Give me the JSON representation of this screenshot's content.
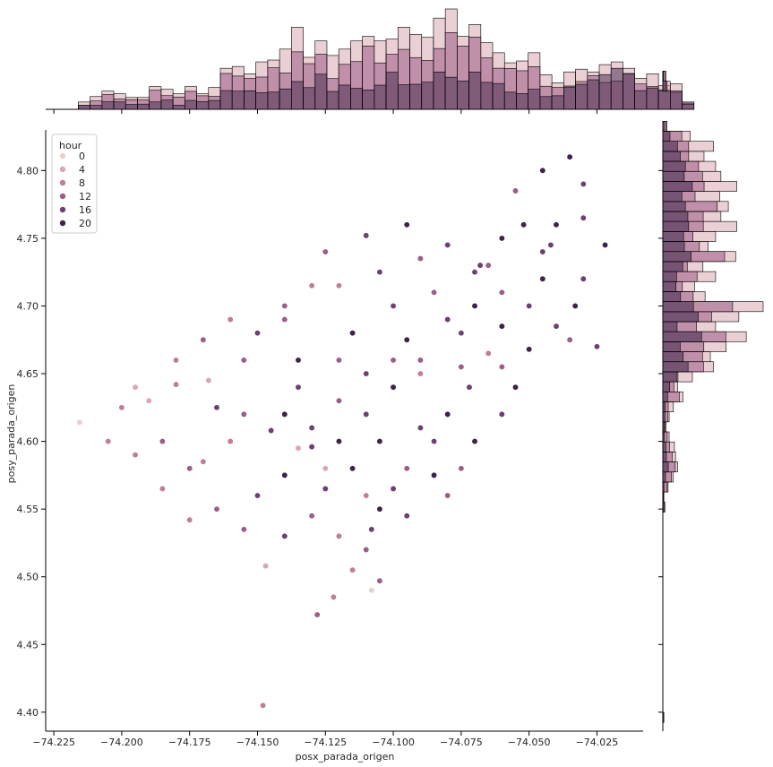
{
  "chart_data": {
    "type": "scatter",
    "subtype": "jointplot",
    "title": "",
    "xlabel": "posx_parada_origen",
    "ylabel": "posy_parada_origen",
    "xlim": [
      -74.228,
      -74.008
    ],
    "ylim": [
      4.386,
      4.83
    ],
    "xticks": [
      -74.225,
      -74.2,
      -74.175,
      -74.15,
      -74.125,
      -74.1,
      -74.075,
      -74.05,
      -74.025
    ],
    "xtick_labels": [
      "−74.225",
      "−74.200",
      "−74.175",
      "−74.150",
      "−74.125",
      "−74.100",
      "−74.075",
      "−74.050",
      "−74.025"
    ],
    "yticks": [
      4.4,
      4.45,
      4.5,
      4.55,
      4.6,
      4.65,
      4.7,
      4.75,
      4.8
    ],
    "ytick_labels": [
      "4.40",
      "4.45",
      "4.50",
      "4.55",
      "4.60",
      "4.65",
      "4.70",
      "4.75",
      "4.80"
    ],
    "grid": false,
    "legend": {
      "title": "hour",
      "placement": "upper-left",
      "entries": [
        {
          "label": "0",
          "color": "#ebcfcf"
        },
        {
          "label": "4",
          "color": "#d9a7b0"
        },
        {
          "label": "8",
          "color": "#bf7e97"
        },
        {
          "label": "12",
          "color": "#9c5d87"
        },
        {
          "label": "16",
          "color": "#6e3f72"
        },
        {
          "label": "20",
          "color": "#3d2347"
        }
      ]
    },
    "hue_colors": [
      "#ebcfcf",
      "#d9a7b0",
      "#bf7e97",
      "#9c5d87",
      "#6e3f72",
      "#3d2347"
    ],
    "stops": [
      [
        -74.2155,
        4.614,
        0
      ],
      [
        -74.205,
        4.6,
        2
      ],
      [
        -74.19,
        4.63,
        1
      ],
      [
        -74.18,
        4.642,
        2
      ],
      [
        -74.168,
        4.645,
        1
      ],
      [
        -74.17,
        4.585,
        2
      ],
      [
        -74.155,
        4.62,
        3
      ],
      [
        -74.145,
        4.608,
        4
      ],
      [
        -74.13,
        4.596,
        4
      ],
      [
        -74.155,
        4.66,
        3
      ],
      [
        -74.15,
        4.68,
        4
      ],
      [
        -74.14,
        4.69,
        3
      ],
      [
        -74.13,
        4.715,
        2
      ],
      [
        -74.125,
        4.74,
        3
      ],
      [
        -74.11,
        4.752,
        4
      ],
      [
        -74.095,
        4.76,
        5
      ],
      [
        -74.08,
        4.745,
        4
      ],
      [
        -74.065,
        4.73,
        3
      ],
      [
        -74.06,
        4.75,
        5
      ],
      [
        -74.045,
        4.74,
        4
      ],
      [
        -74.04,
        4.76,
        5
      ],
      [
        -74.03,
        4.765,
        4
      ],
      [
        -74.022,
        4.745,
        5
      ],
      [
        -74.03,
        4.72,
        4
      ],
      [
        -74.033,
        4.7,
        5
      ],
      [
        -74.04,
        4.685,
        4
      ],
      [
        -74.05,
        4.668,
        5
      ],
      [
        -74.06,
        4.655,
        3
      ],
      [
        -74.072,
        4.64,
        4
      ],
      [
        -74.08,
        4.62,
        5
      ],
      [
        -74.085,
        4.6,
        4
      ],
      [
        -74.095,
        4.58,
        3
      ],
      [
        -74.1,
        4.565,
        4
      ],
      [
        -74.105,
        4.55,
        5
      ],
      [
        -74.108,
        4.535,
        4
      ],
      [
        -74.11,
        4.52,
        3
      ],
      [
        -74.115,
        4.505,
        2
      ],
      [
        -74.105,
        4.497,
        3
      ],
      [
        -74.122,
        4.485,
        2
      ],
      [
        -74.128,
        4.472,
        3
      ],
      [
        -74.148,
        4.405,
        2
      ],
      [
        -74.147,
        4.508,
        1
      ],
      [
        -74.12,
        4.6,
        5
      ],
      [
        -74.11,
        4.62,
        4
      ],
      [
        -74.1,
        4.64,
        5
      ],
      [
        -74.09,
        4.66,
        3
      ],
      [
        -74.075,
        4.68,
        4
      ],
      [
        -74.07,
        4.7,
        5
      ],
      [
        -74.085,
        4.71,
        3
      ],
      [
        -74.1,
        4.7,
        4
      ],
      [
        -74.115,
        4.68,
        5
      ],
      [
        -74.12,
        4.66,
        3
      ],
      [
        -74.135,
        4.64,
        4
      ],
      [
        -74.14,
        4.62,
        5
      ],
      [
        -74.16,
        4.6,
        2
      ],
      [
        -74.175,
        4.58,
        3
      ],
      [
        -74.185,
        4.565,
        2
      ],
      [
        -74.165,
        4.55,
        3
      ],
      [
        -74.15,
        4.56,
        4
      ],
      [
        -74.14,
        4.575,
        5
      ],
      [
        -74.125,
        4.565,
        4
      ],
      [
        -74.115,
        4.58,
        5
      ],
      [
        -74.09,
        4.61,
        4
      ],
      [
        -74.075,
        4.58,
        3
      ],
      [
        -74.07,
        4.6,
        5
      ],
      [
        -74.06,
        4.62,
        4
      ],
      [
        -74.055,
        4.64,
        5
      ],
      [
        -74.05,
        4.7,
        4
      ],
      [
        -74.045,
        4.72,
        5
      ],
      [
        -74.06,
        4.71,
        3
      ],
      [
        -74.07,
        4.725,
        4
      ],
      [
        -74.09,
        4.735,
        3
      ],
      [
        -74.105,
        4.725,
        4
      ],
      [
        -74.12,
        4.715,
        2
      ],
      [
        -74.14,
        4.7,
        3
      ],
      [
        -74.16,
        4.69,
        2
      ],
      [
        -74.17,
        4.675,
        3
      ],
      [
        -74.18,
        4.66,
        2
      ],
      [
        -74.195,
        4.64,
        1
      ],
      [
        -74.2,
        4.625,
        2
      ],
      [
        -74.185,
        4.6,
        3
      ],
      [
        -74.195,
        4.59,
        2
      ],
      [
        -74.165,
        4.625,
        4
      ],
      [
        -74.135,
        4.66,
        5
      ],
      [
        -74.11,
        4.65,
        4
      ],
      [
        -74.095,
        4.675,
        5
      ],
      [
        -74.08,
        4.69,
        4
      ],
      [
        -74.06,
        4.685,
        5
      ],
      [
        -74.035,
        4.675,
        3
      ],
      [
        -74.025,
        4.67,
        4
      ],
      [
        -74.12,
        4.63,
        3
      ],
      [
        -74.13,
        4.61,
        4
      ],
      [
        -74.105,
        4.6,
        5
      ],
      [
        -74.095,
        4.545,
        4
      ],
      [
        -74.08,
        4.56,
        3
      ],
      [
        -74.085,
        4.575,
        5
      ],
      [
        -74.175,
        4.542,
        2
      ],
      [
        -74.155,
        4.535,
        3
      ],
      [
        -74.14,
        4.53,
        4
      ],
      [
        -74.13,
        4.545,
        3
      ],
      [
        -74.12,
        4.53,
        2
      ],
      [
        -74.045,
        4.8,
        5
      ],
      [
        -74.035,
        4.81,
        5
      ],
      [
        -74.03,
        4.79,
        4
      ],
      [
        -74.055,
        4.785,
        3
      ],
      [
        -74.068,
        4.73,
        4
      ],
      [
        -74.052,
        4.76,
        5
      ],
      [
        -74.042,
        4.745,
        4
      ],
      [
        -74.09,
        4.65,
        2
      ],
      [
        -74.1,
        4.66,
        3
      ],
      [
        -74.065,
        4.665,
        2
      ],
      [
        -74.075,
        4.655,
        3
      ],
      [
        -74.125,
        4.58,
        1
      ],
      [
        -74.11,
        4.56,
        2
      ],
      [
        -74.135,
        4.595,
        1
      ],
      [
        -74.108,
        4.49,
        0
      ]
    ],
    "top_marginal": {
      "type": "stacked-histogram",
      "bin_edges_start": -74.216,
      "bin_width": 0.00436,
      "totals": [
        8,
        14,
        20,
        17,
        13,
        13,
        25,
        22,
        17,
        25,
        17,
        24,
        45,
        47,
        39,
        52,
        54,
        66,
        90,
        57,
        75,
        59,
        66,
        75,
        80,
        75,
        77,
        90,
        82,
        79,
        100,
        110,
        80,
        93,
        73,
        62,
        51,
        53,
        62,
        38,
        29,
        41,
        44,
        41,
        49,
        52,
        45,
        34,
        39,
        26,
        28,
        8
      ],
      "max_count": 110
    },
    "right_marginal": {
      "type": "stacked-histogram",
      "bin_edges_start": 4.385,
      "bin_width": 0.0074,
      "totals": [
        0,
        1,
        0,
        0,
        0,
        0,
        0,
        0,
        0,
        0,
        0,
        0,
        0,
        0,
        0,
        0,
        0,
        0,
        0,
        0,
        0,
        0,
        2,
        1,
        5,
        10,
        14,
        12,
        11,
        6,
        3,
        6,
        10,
        19,
        14,
        28,
        48,
        45,
        60,
        79,
        50,
        72,
        95,
        40,
        30,
        50,
        38,
        69,
        43,
        50,
        70,
        55,
        62,
        54,
        70,
        55,
        50,
        39,
        48,
        26,
        4,
        0,
        0,
        0,
        7,
        3,
        0
      ],
      "max_count": 95
    }
  }
}
